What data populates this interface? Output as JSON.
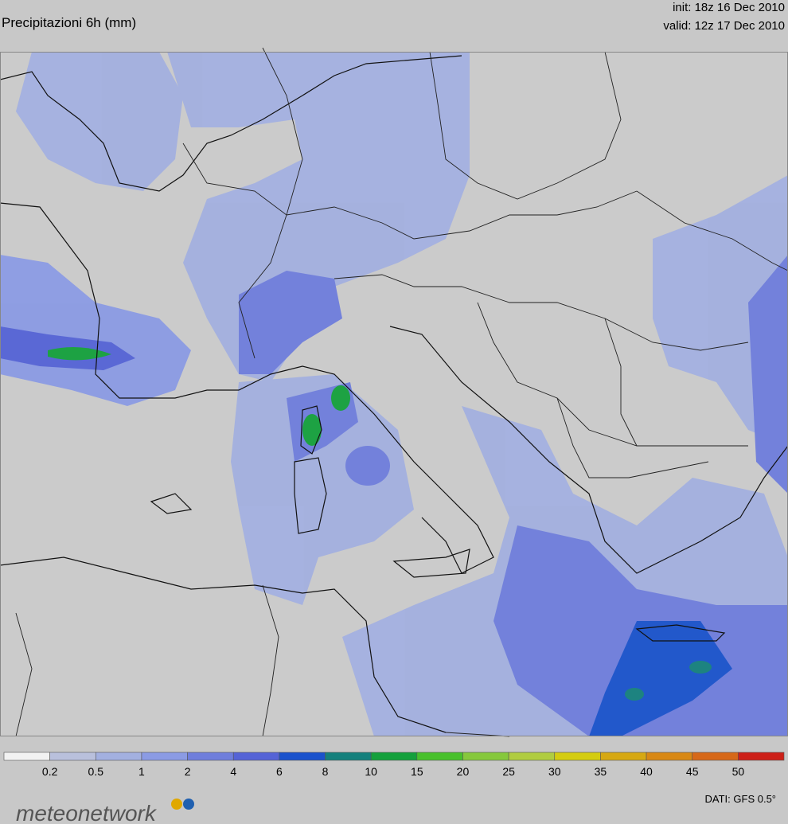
{
  "header": {
    "title": "Precipitazioni 6h (mm)",
    "init": "init: 18z 16 Dec 2010",
    "valid": "valid: 12z 17 Dec 2010"
  },
  "legend": {
    "levels": [
      0.2,
      0.5,
      1,
      2,
      4,
      6,
      8,
      10,
      15,
      20,
      25,
      30,
      35,
      40,
      45,
      50
    ],
    "colors": [
      "#f2f2f2",
      "#b9c0dc",
      "#a3b0e0",
      "#8b9be4",
      "#6f7edc",
      "#5563d6",
      "#1a52cc",
      "#14807c",
      "#14a03c",
      "#48c02c",
      "#86c83c",
      "#b0cc40",
      "#d4cc10",
      "#d6a812",
      "#d88814",
      "#d66818",
      "#cc2018"
    ]
  },
  "footer": {
    "brand": "meteonetwork",
    "source": "DATI:  GFS  0.5°"
  }
}
